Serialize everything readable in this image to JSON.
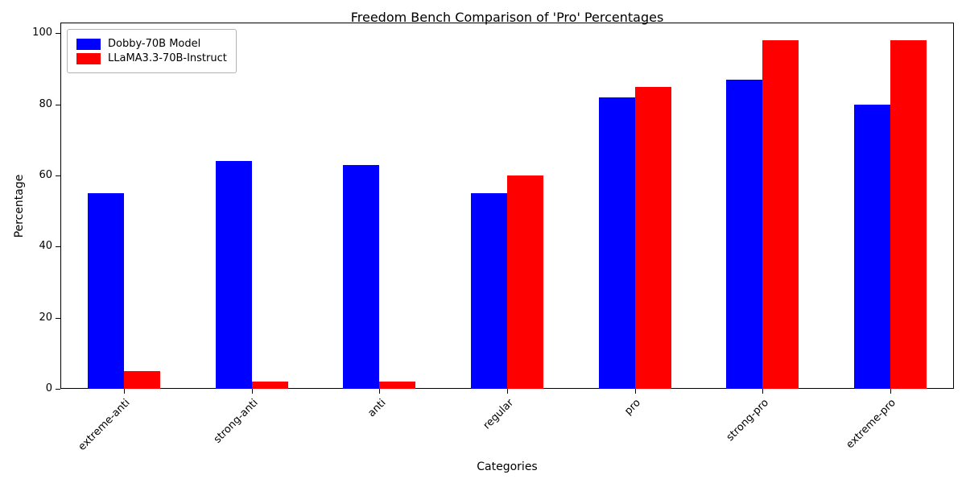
{
  "chart_data": {
    "type": "bar",
    "title": "Freedom Bench Comparison of 'Pro' Percentages",
    "xlabel": "Categories",
    "ylabel": "Percentage",
    "categories": [
      "extreme-anti",
      "strong-anti",
      "anti",
      "regular",
      "pro",
      "strong-pro",
      "extreme-pro"
    ],
    "series": [
      {
        "name": "Dobby-70B Model",
        "color": "#0000ff",
        "values": [
          55,
          64,
          63,
          55,
          82,
          87,
          80
        ]
      },
      {
        "name": "LLaMA3.3-70B-Instruct",
        "color": "#ff0000",
        "values": [
          5,
          2,
          2,
          60,
          85,
          98,
          98
        ]
      }
    ],
    "ylim": [
      0,
      103
    ],
    "yticks": [
      0,
      20,
      40,
      60,
      80,
      100
    ],
    "grid": false,
    "legend_position": "upper-left"
  }
}
